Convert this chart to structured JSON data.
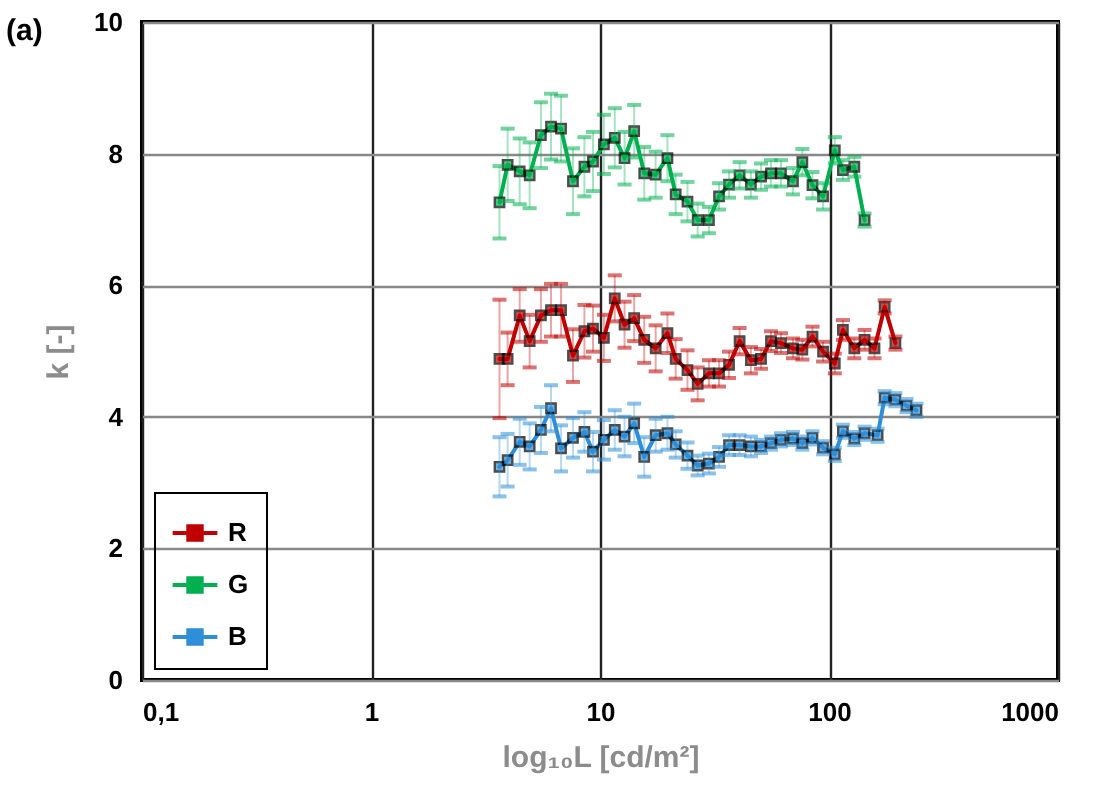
{
  "chart_data": {
    "type": "line",
    "title": "(a)",
    "xlabel": "log₁₀L [cd/m²]",
    "ylabel": "k [-]",
    "log": "x",
    "xlim": [
      0.1,
      1000
    ],
    "xticks": [
      {
        "value": 0.1,
        "label": "0,1"
      },
      1,
      10,
      100,
      1000
    ],
    "ylim": [
      0,
      10
    ],
    "yticks": [
      0,
      2,
      4,
      6,
      8,
      10
    ],
    "grid": true,
    "legend": "bottom left",
    "marker": "square",
    "series": [
      {
        "name": "R",
        "color": "#c00000",
        "x": [
          3.64,
          3.95,
          4.46,
          4.93,
          5.52,
          6.11,
          6.76,
          7.62,
          8.55,
          9.32,
          10.4,
          11.6,
          12.8,
          14.1,
          15.6,
          17.5,
          19.7,
          21.4,
          24.1,
          26.7,
          29.9,
          33.1,
          36.6,
          40.7,
          45.6,
          50.5,
          55.8,
          61.7,
          69.6,
          76.5,
          84.7,
          94.2,
          106,
          115,
          129,
          143,
          158,
          175,
          195
        ],
        "values": [
          4.88,
          4.88,
          5.54,
          5.15,
          5.54,
          5.62,
          5.62,
          4.93,
          5.3,
          5.34,
          5.2,
          5.8,
          5.4,
          5.5,
          5.17,
          5.04,
          5.27,
          4.88,
          4.71,
          4.5,
          4.66,
          4.66,
          4.79,
          5.15,
          4.86,
          4.88,
          5.15,
          5.12,
          5.04,
          5.02,
          5.22,
          4.99,
          4.81,
          5.32,
          5.04,
          5.17,
          5.04,
          5.67,
          5.12
        ],
        "errors": [
          0.9,
          0.4,
          0.4,
          0.4,
          0.4,
          0.4,
          0.4,
          0.4,
          0.4,
          0.35,
          0.35,
          0.35,
          0.35,
          0.35,
          0.35,
          0.35,
          0.3,
          0.3,
          0.3,
          0.25,
          0.2,
          0.2,
          0.2,
          0.2,
          0.2,
          0.15,
          0.15,
          0.15,
          0.15,
          0.15,
          0.15,
          0.15,
          0.15,
          0.15,
          0.15,
          0.15,
          0.15,
          0.1,
          0.1
        ]
      },
      {
        "name": "G",
        "color": "#00b050",
        "x": [
          3.64,
          3.95,
          4.46,
          4.93,
          5.52,
          6.11,
          6.76,
          7.62,
          8.55,
          9.32,
          10.4,
          11.6,
          12.8,
          14.1,
          15.6,
          17.5,
          19.7,
          21.4,
          24.1,
          26.7,
          29.9,
          33.1,
          36.6,
          40.7,
          45.6,
          50.5,
          55.8,
          61.7,
          69.6,
          76.5,
          84.7,
          94.2,
          106,
          115,
          129,
          143
        ],
        "values": [
          7.26,
          7.83,
          7.73,
          7.67,
          8.28,
          8.41,
          8.38,
          7.58,
          7.8,
          7.88,
          8.14,
          8.24,
          7.93,
          8.34,
          7.7,
          7.68,
          7.93,
          7.38,
          7.27,
          6.99,
          6.99,
          7.35,
          7.53,
          7.67,
          7.53,
          7.65,
          7.7,
          7.7,
          7.58,
          7.87,
          7.52,
          7.35,
          8.05,
          7.75,
          7.8,
          6.99
        ],
        "errors": [
          0.55,
          0.55,
          0.5,
          0.5,
          0.5,
          0.5,
          0.5,
          0.5,
          0.45,
          0.45,
          0.45,
          0.45,
          0.4,
          0.4,
          0.4,
          0.35,
          0.35,
          0.3,
          0.3,
          0.25,
          0.2,
          0.2,
          0.2,
          0.2,
          0.2,
          0.2,
          0.2,
          0.2,
          0.2,
          0.2,
          0.2,
          0.2,
          0.2,
          0.15,
          0.15,
          0.1
        ]
      },
      {
        "name": "B",
        "color": "#2e8fd8",
        "x": [
          3.64,
          3.95,
          4.46,
          4.93,
          5.52,
          6.11,
          6.76,
          7.62,
          8.55,
          9.32,
          10.4,
          11.6,
          12.8,
          14.1,
          15.6,
          17.5,
          19.7,
          21.4,
          24.1,
          26.7,
          29.9,
          33.1,
          36.6,
          40.7,
          45.6,
          50.5,
          55.8,
          61.7,
          69.6,
          76.5,
          84.7,
          94.2,
          106,
          115,
          129,
          143,
          163,
          175,
          195,
          218,
          241
        ],
        "values": [
          3.24,
          3.34,
          3.62,
          3.55,
          3.8,
          4.13,
          3.52,
          3.68,
          3.77,
          3.47,
          3.65,
          3.8,
          3.7,
          3.9,
          3.39,
          3.72,
          3.75,
          3.58,
          3.41,
          3.26,
          3.29,
          3.39,
          3.57,
          3.57,
          3.55,
          3.55,
          3.6,
          3.65,
          3.67,
          3.6,
          3.68,
          3.53,
          3.43,
          3.78,
          3.67,
          3.75,
          3.72,
          4.29,
          4.26,
          4.17,
          4.1
        ],
        "errors": [
          0.45,
          0.4,
          0.35,
          0.35,
          0.35,
          0.35,
          0.35,
          0.3,
          0.3,
          0.3,
          0.3,
          0.3,
          0.3,
          0.3,
          0.3,
          0.25,
          0.25,
          0.2,
          0.2,
          0.15,
          0.15,
          0.15,
          0.15,
          0.15,
          0.15,
          0.1,
          0.1,
          0.1,
          0.1,
          0.1,
          0.1,
          0.1,
          0.1,
          0.1,
          0.1,
          0.1,
          0.1,
          0.1,
          0.1,
          0.1,
          0.1
        ]
      }
    ]
  }
}
